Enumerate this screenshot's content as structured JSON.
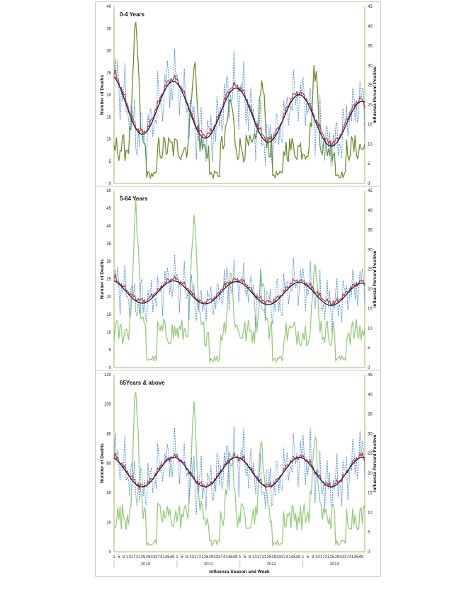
{
  "figure": {
    "xlabel": "Influenza Season and Week",
    "week_tick_labels": [
      "1",
      "5",
      "9",
      "13",
      "17",
      "21",
      "25",
      "29",
      "33",
      "37",
      "41",
      "45",
      "49"
    ],
    "season_labels": [
      "2010",
      "2011",
      "2012",
      "2013"
    ],
    "left_axis_label": "Number of Deaths",
    "right_axis_label": "Influenza Percent Positive"
  },
  "colors": {
    "observed": "#4a8ad6",
    "smoothed": "#c0393b",
    "baseline": "#1a2a5a",
    "flu_panel1": "#6a8f2a",
    "flu_panel2": "#96cc7a",
    "flu_panel3": "#96cc7a",
    "axis": "#9a9a3a"
  },
  "chart_data": [
    {
      "type": "line",
      "title": "0-4 Years",
      "ylabel": "Number of Deaths",
      "y2label": "Influenza Percent Positive",
      "ylim": [
        0,
        40
      ],
      "yticks": [
        0,
        5,
        10,
        15,
        20,
        25,
        30,
        35,
        40
      ],
      "y2lim": [
        0,
        45
      ],
      "y2ticks": [
        0,
        5,
        10,
        15,
        20,
        25,
        30,
        35,
        40,
        45
      ],
      "weeks": 208,
      "baseline_model": {
        "mean": 18,
        "amplitude": 6.5,
        "trend": -0.023,
        "amplitude_trend": -0.006
      },
      "observed_model": {
        "noise": 7.0
      },
      "flu_model": {
        "base": 10,
        "peak_weeks": [
          18,
          66,
          96,
          122,
          166
        ],
        "peak_heights": [
          40,
          32,
          22,
          26,
          30
        ]
      }
    },
    {
      "type": "line",
      "title": "5-64 Years",
      "ylabel": "Number of Deaths",
      "y2label": "Influenza Percent Positive",
      "ylim": [
        0,
        50
      ],
      "yticks": [
        0,
        5,
        10,
        15,
        20,
        25,
        30,
        35,
        40,
        45,
        50
      ],
      "y2lim": [
        0,
        45
      ],
      "y2ticks": [
        0,
        5,
        10,
        15,
        20,
        25,
        30,
        35,
        40,
        45
      ],
      "weeks": 208,
      "baseline_model": {
        "mean": 21.5,
        "amplitude": 3.2,
        "trend": -0.004,
        "amplitude_trend": 0
      },
      "observed_model": {
        "noise": 7.0
      },
      "flu_model": {
        "base": 10,
        "peak_weeks": [
          18,
          66,
          96,
          122,
          166
        ],
        "peak_heights": [
          41,
          37,
          25,
          25,
          25
        ]
      }
    },
    {
      "type": "line",
      "title": "65Years & above",
      "ylabel": "Number of Deaths",
      "y2label": "Influenza Percent Positive",
      "ylim": [
        0,
        120
      ],
      "yticks": [
        0,
        20,
        40,
        60,
        80,
        100,
        120
      ],
      "y2lim": [
        0,
        45
      ],
      "y2ticks": [
        0,
        5,
        10,
        15,
        20,
        25,
        30,
        35,
        40,
        45
      ],
      "weeks": 208,
      "baseline_model": {
        "mean": 54,
        "amplitude": 10,
        "trend": 0,
        "amplitude_trend": 0
      },
      "observed_model": {
        "noise": 20.0
      },
      "flu_model": {
        "base": 10,
        "peak_weeks": [
          18,
          66,
          96,
          122,
          166
        ],
        "peak_heights": [
          40,
          36,
          28,
          28,
          28
        ]
      }
    }
  ]
}
